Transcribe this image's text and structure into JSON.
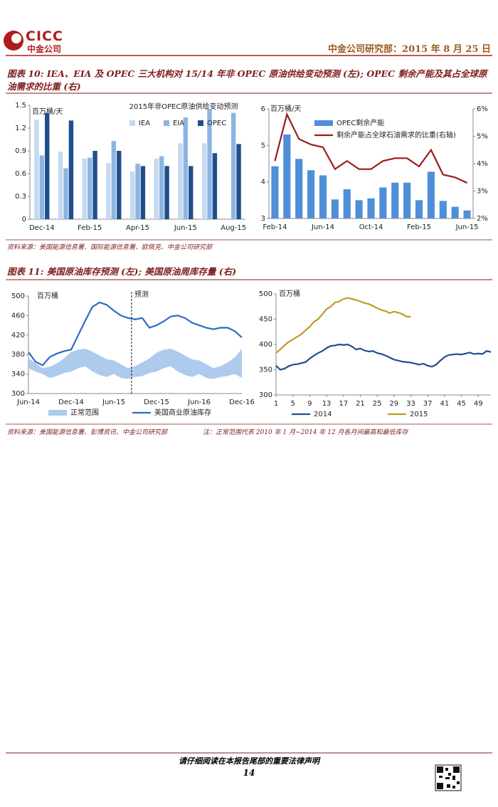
{
  "header": {
    "logo_text": "CICC",
    "logo_subtext": "中金公司",
    "right": "中金公司研究部：2015 年 8 月 25 日"
  },
  "figure10": {
    "title": "图表 10: IEA、EIA 及 OPEC 三大机构对 15/14 年非 OPEC 原油供给变动预测 (左); OPEC 剩余产能及其占全球原油需求的比重 (右)",
    "source": "资料来源：美国能源信息署、国际能源信息署、欧佩克、中金公司研究部"
  },
  "figure11": {
    "title": "图表 11: 美国原油库存预测 (左); 美国原油周库存量 (右)",
    "source": "资料来源：美国能源信息署、彭博资讯、中金公司研究部",
    "note": "注：正常范围代表 2010 年 1 月~2014 年 12 月各月间最高和最低库存"
  },
  "footer": {
    "disclaimer": "请仔细阅读在本报告尾部的重要法律声明",
    "page": "14"
  },
  "chart_data": [
    {
      "type": "bar",
      "title": "2015年非OPEC原油供给变动预测",
      "y_label": "百万桶/天",
      "categories": [
        "Dec-14",
        null,
        "Feb-15",
        null,
        "Apr-15",
        null,
        "Jun-15",
        null,
        "Aug-15"
      ],
      "series": [
        {
          "name": "IEA",
          "color": "#c5d9f1",
          "values": [
            1.31,
            0.89,
            0.8,
            0.74,
            0.63,
            0.8,
            1.0,
            1.0,
            null
          ]
        },
        {
          "name": "EIA",
          "color": "#8db4e2",
          "values": [
            0.84,
            0.67,
            0.81,
            1.03,
            0.73,
            0.83,
            1.34,
            1.45,
            1.4
          ]
        },
        {
          "name": "OPEC",
          "color": "#1f4e8c",
          "values": [
            1.4,
            1.3,
            0.9,
            0.9,
            0.7,
            0.7,
            0.7,
            0.87,
            0.99
          ]
        }
      ],
      "ylim": [
        0,
        1.5
      ],
      "yticks": [
        0,
        0.3,
        0.6,
        0.9,
        1.2,
        1.5
      ],
      "grid": false
    },
    {
      "type": "combo",
      "y_label": "百万桶/天",
      "categories": [
        "Feb-14",
        null,
        null,
        null,
        "Jun-14",
        null,
        null,
        null,
        "Oct-14",
        null,
        null,
        null,
        "Feb-15",
        null,
        null,
        null,
        "Jun-15"
      ],
      "series": [
        {
          "name": "OPEC剩余产能",
          "color": "#4f8fd8",
          "values": [
            4.43,
            5.3,
            4.63,
            4.32,
            4.18,
            3.52,
            3.8,
            3.5,
            3.55,
            3.85,
            3.98,
            3.98,
            3.5,
            4.28,
            3.48,
            3.32,
            3.22
          ]
        },
        {
          "name": "剩余产能占全球石油需求的比重(右轴)",
          "color": "#9b1b1b",
          "axis": "y2",
          "values": [
            4.1,
            5.8,
            4.9,
            4.7,
            4.6,
            3.8,
            4.1,
            3.8,
            3.8,
            4.1,
            4.2,
            4.2,
            3.9,
            4.5,
            3.6,
            3.5,
            3.3
          ]
        }
      ],
      "ylim": [
        3,
        6
      ],
      "yticks": [
        3,
        4,
        5,
        6
      ],
      "y2lim": [
        2,
        6
      ],
      "y2ticks": [
        {
          "value": 2,
          "label": "2%"
        },
        {
          "value": 3,
          "label": "3%"
        },
        {
          "value": 4,
          "label": "4%"
        },
        {
          "value": 5,
          "label": "5%"
        },
        {
          "value": 6,
          "label": "6%"
        }
      ],
      "grid": false
    },
    {
      "type": "line",
      "y_label": "百万桶",
      "annotation": "预测",
      "categories": [
        "Jun-14",
        null,
        null,
        null,
        null,
        null,
        "Dec-14",
        null,
        null,
        null,
        null,
        null,
        "Jun-15",
        null,
        null,
        null,
        null,
        null,
        "Dec-15",
        null,
        null,
        null,
        null,
        null,
        "Jun-16",
        null,
        null,
        null,
        null,
        null,
        "Dec-16"
      ],
      "series": [
        {
          "name": "正常范围",
          "color": "#aecbee",
          "high": [
            372,
            362,
            352,
            355,
            362,
            372,
            385,
            390,
            392,
            386,
            378,
            370,
            368,
            360,
            352,
            356,
            364,
            372,
            384,
            390,
            392,
            386,
            378,
            370,
            368,
            360,
            352,
            356,
            364,
            374,
            392
          ],
          "low": [
            352,
            345,
            340,
            332,
            336,
            342,
            345,
            352,
            356,
            345,
            338,
            334,
            340,
            332,
            330,
            334,
            336,
            342,
            345,
            352,
            356,
            345,
            338,
            334,
            340,
            332,
            330,
            334,
            336,
            340,
            332
          ]
        },
        {
          "name": "美国商业原油库存",
          "color": "#2e6cc0",
          "values": [
            385,
            365,
            358,
            375,
            382,
            387,
            390,
            420,
            450,
            478,
            487,
            482,
            470,
            460,
            455,
            452,
            455,
            435,
            440,
            448,
            458,
            460,
            455,
            445,
            440,
            435,
            432,
            435,
            435,
            428,
            415
          ]
        }
      ],
      "ylim": [
        300,
        500
      ],
      "yticks": [
        300,
        340,
        380,
        420,
        460,
        500
      ],
      "grid": false
    },
    {
      "type": "line",
      "y_label": "百万桶",
      "x": [
        1,
        2,
        3,
        4,
        5,
        6,
        7,
        8,
        9,
        10,
        11,
        12,
        13,
        14,
        15,
        16,
        17,
        18,
        19,
        20,
        21,
        22,
        23,
        24,
        25,
        26,
        27,
        28,
        29,
        30,
        31,
        32,
        33,
        34,
        35,
        36,
        37,
        38,
        39,
        40,
        41,
        42,
        43,
        44,
        45,
        46,
        47,
        48,
        49,
        50,
        51,
        52
      ],
      "xlim": [
        1,
        52
      ],
      "xticks": [
        1,
        5,
        9,
        13,
        17,
        21,
        25,
        29,
        33,
        37,
        41,
        45,
        49
      ],
      "series": [
        {
          "name": "2014",
          "color": "#1f4e8c",
          "values": [
            358,
            350,
            352,
            357,
            360,
            361,
            363,
            365,
            372,
            378,
            383,
            387,
            393,
            397,
            398,
            400,
            399,
            400,
            396,
            390,
            392,
            388,
            386,
            387,
            383,
            381,
            378,
            374,
            370,
            368,
            366,
            365,
            364,
            362,
            360,
            362,
            358,
            356,
            360,
            368,
            375,
            379,
            380,
            381,
            380,
            382,
            384,
            381,
            382,
            381,
            387,
            385
          ]
        },
        {
          "name": "2015",
          "color": "#c09a26",
          "values": [
            383,
            390,
            398,
            405,
            410,
            415,
            420,
            428,
            435,
            445,
            450,
            460,
            470,
            475,
            483,
            485,
            490,
            492,
            490,
            488,
            485,
            482,
            480,
            476,
            472,
            468,
            466,
            462,
            465,
            463,
            460,
            455,
            455,
            null,
            null,
            null,
            null,
            null,
            null,
            null,
            null,
            null,
            null,
            null,
            null,
            null,
            null,
            null,
            null,
            null,
            null,
            null
          ]
        }
      ],
      "ylim": [
        300,
        500
      ],
      "yticks": [
        300,
        350,
        400,
        450,
        500
      ],
      "grid": false
    }
  ]
}
